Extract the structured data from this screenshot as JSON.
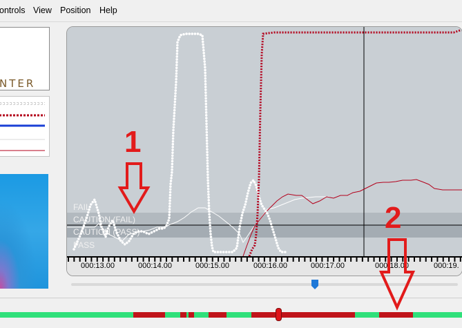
{
  "menu": {
    "items": [
      {
        "label": "ontrols",
        "name": "menu-controls"
      },
      {
        "label": "View",
        "name": "menu-view"
      },
      {
        "label": "Position",
        "name": "menu-position"
      },
      {
        "label": "Help",
        "name": "menu-help"
      }
    ]
  },
  "logo": {
    "text": "NTER"
  },
  "chart": {
    "zones": [
      "FAIL",
      "CAUTION (FAIL)",
      "CAUTION (PASS)",
      "PASS"
    ],
    "time_ticks": [
      "000:13.00",
      "000:14.00",
      "000:15.00",
      "000:16.00",
      "000:17.00",
      "000:18.00",
      "000:19."
    ],
    "cursor_time": "000:17.50",
    "colors": {
      "white_dotted": "#ffffff",
      "red_dotted": "#b3001b",
      "blue": "#1a3fd6",
      "thin_white": "#ffffff",
      "thin_red": "#b3001b"
    }
  },
  "timeline": {
    "position_fraction": 0.604,
    "red_segments": [
      [
        0.289,
        0.357
      ],
      [
        0.39,
        0.404
      ],
      [
        0.408,
        0.42
      ],
      [
        0.451,
        0.49
      ],
      [
        0.544,
        0.769
      ],
      [
        0.821,
        0.894
      ]
    ]
  },
  "scroll": {
    "position_fraction": 0.625
  },
  "annotations": {
    "callout_1": "1",
    "callout_2": "2",
    "arrow_color": "#e21b1b"
  }
}
